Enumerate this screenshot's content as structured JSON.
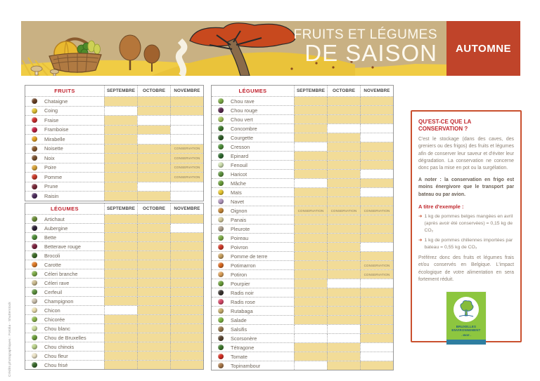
{
  "banner": {
    "title_line1": "FRUITS ET LÉGUMES",
    "title_line2": "DE SAISON",
    "season": "AUTOMNE"
  },
  "months": [
    "SEPTEMBRE",
    "OCTOBRE",
    "NOVEMBRE"
  ],
  "conservation_label": "CONSERVATION",
  "colors": {
    "accent_red": "#c0442a",
    "heading_red": "#c0272d",
    "cell_fill": "#f2dc98",
    "banner_bg": "#c9b183",
    "logo_green": "#8dc63f",
    "logo_blue": "#2e7ea0",
    "label_text": "#6e6458"
  },
  "tables": [
    {
      "section": "FRUITS",
      "rows": [
        {
          "label": "Chataigne",
          "icon": "chataigne-icon",
          "color": "#6b4226",
          "cells": [
            "f",
            "f",
            "f"
          ]
        },
        {
          "label": "Coing",
          "icon": "coing-icon",
          "color": "#e3c436",
          "cells": [
            "e",
            "f",
            "f"
          ]
        },
        {
          "label": "Fraise",
          "icon": "fraise-icon",
          "color": "#d12f2f",
          "cells": [
            "f",
            "e",
            "e"
          ]
        },
        {
          "label": "Framboise",
          "icon": "framboise-icon",
          "color": "#c42143",
          "cells": [
            "f",
            "f",
            "e"
          ]
        },
        {
          "label": "Mirabelle",
          "icon": "mirabelle-icon",
          "color": "#e8a625",
          "cells": [
            "f",
            "e",
            "e"
          ]
        },
        {
          "label": "Noisette",
          "icon": "noisette-icon",
          "color": "#8a5a2e",
          "cells": [
            "f",
            "f",
            "c"
          ]
        },
        {
          "label": "Noix",
          "icon": "noix-icon",
          "color": "#7a5230",
          "cells": [
            "f",
            "f",
            "c"
          ]
        },
        {
          "label": "Poire",
          "icon": "poire-icon",
          "color": "#d9a43a",
          "cells": [
            "f",
            "f",
            "c"
          ]
        },
        {
          "label": "Pomme",
          "icon": "pomme-icon",
          "color": "#cc3b2a",
          "cells": [
            "f",
            "f",
            "c"
          ]
        },
        {
          "label": "Prune",
          "icon": "prune-icon",
          "color": "#7a2a3a",
          "cells": [
            "f",
            "e",
            "e"
          ]
        },
        {
          "label": "Raisin",
          "icon": "raisin-icon",
          "color": "#4e2d5e",
          "cells": [
            "f",
            "f",
            "e"
          ]
        }
      ]
    },
    {
      "section": "LÉGUMES",
      "rows": [
        {
          "label": "Artichaut",
          "icon": "artichaut-icon",
          "color": "#6d8f3a",
          "cells": [
            "f",
            "f",
            "f"
          ]
        },
        {
          "label": "Aubergine",
          "icon": "aubergine-icon",
          "color": "#2e2238",
          "cells": [
            "f",
            "f",
            "e"
          ]
        },
        {
          "label": "Bette",
          "icon": "bette-icon",
          "color": "#4f8f3a",
          "cells": [
            "f",
            "f",
            "f"
          ]
        },
        {
          "label": "Betterave rouge",
          "icon": "betterave-rouge-icon",
          "color": "#7e2440",
          "cells": [
            "f",
            "f",
            "f"
          ]
        },
        {
          "label": "Brocoli",
          "icon": "brocoli-icon",
          "color": "#3e6e2a",
          "cells": [
            "f",
            "f",
            "f"
          ]
        },
        {
          "label": "Carotte",
          "icon": "carotte-icon",
          "color": "#e07b28",
          "cells": [
            "f",
            "f",
            "f"
          ]
        },
        {
          "label": "Céleri branche",
          "icon": "celeri-branche-icon",
          "color": "#7fae4a",
          "cells": [
            "f",
            "f",
            "f"
          ]
        },
        {
          "label": "Céleri rave",
          "icon": "celeri-rave-icon",
          "color": "#cdbd92",
          "cells": [
            "f",
            "f",
            "f"
          ]
        },
        {
          "label": "Cerfeuil",
          "icon": "cerfeuil-icon",
          "color": "#5f9440",
          "cells": [
            "f",
            "f",
            "f"
          ]
        },
        {
          "label": "Champignon",
          "icon": "champignon-icon",
          "color": "#cfc4b0",
          "cells": [
            "f",
            "f",
            "f"
          ]
        },
        {
          "label": "Chicon",
          "icon": "chicon-icon",
          "color": "#ece0b0",
          "cells": [
            "e",
            "f",
            "f"
          ]
        },
        {
          "label": "Chicorée",
          "icon": "chicoree-icon",
          "color": "#8fba50",
          "cells": [
            "f",
            "f",
            "f"
          ]
        },
        {
          "label": "Chou blanc",
          "icon": "chou-blanc-icon",
          "color": "#cfe0a0",
          "cells": [
            "f",
            "f",
            "f"
          ]
        },
        {
          "label": "Chou de Bruxelles",
          "icon": "chou-de-bruxelles-icon",
          "color": "#6da03c",
          "cells": [
            "f",
            "f",
            "f"
          ]
        },
        {
          "label": "Chou chinois",
          "icon": "chou-chinois-icon",
          "color": "#bcd48c",
          "cells": [
            "f",
            "f",
            "f"
          ]
        },
        {
          "label": "Chou fleur",
          "icon": "chou-fleur-icon",
          "color": "#ece4c8",
          "cells": [
            "f",
            "f",
            "f"
          ]
        },
        {
          "label": "Chou frisé",
          "icon": "chou-frise-icon",
          "color": "#3a6b2e",
          "cells": [
            "f",
            "f",
            "f"
          ]
        }
      ]
    },
    {
      "section": "LÉGUMES",
      "rows": [
        {
          "label": "Chou rave",
          "icon": "chou-rave-icon",
          "color": "#7fae4a",
          "cells": [
            "f",
            "f",
            "f"
          ]
        },
        {
          "label": "Chou rouge",
          "icon": "chou-rouge-icon",
          "color": "#5c2a52",
          "cells": [
            "f",
            "f",
            "f"
          ]
        },
        {
          "label": "Chou vert",
          "icon": "chou-vert-icon",
          "color": "#a8c860",
          "cells": [
            "f",
            "f",
            "f"
          ]
        },
        {
          "label": "Concombre",
          "icon": "concombre-icon",
          "color": "#3f7a2e",
          "cells": [
            "f",
            "e",
            "e"
          ]
        },
        {
          "label": "Courgette",
          "icon": "courgette-icon",
          "color": "#2f5e28",
          "cells": [
            "f",
            "f",
            "e"
          ]
        },
        {
          "label": "Cresson",
          "icon": "cresson-icon",
          "color": "#4f8f3a",
          "cells": [
            "e",
            "f",
            "f"
          ]
        },
        {
          "label": "Epinard",
          "icon": "epinard-icon",
          "color": "#2f6b2f",
          "cells": [
            "f",
            "f",
            "f"
          ]
        },
        {
          "label": "Fenouil",
          "icon": "fenouil-icon",
          "color": "#cfe0b0",
          "cells": [
            "f",
            "f",
            "f"
          ]
        },
        {
          "label": "Haricot",
          "icon": "haricot-icon",
          "color": "#5f9440",
          "cells": [
            "f",
            "f",
            "e"
          ]
        },
        {
          "label": "Mâche",
          "icon": "mache-icon",
          "color": "#6da03c",
          "cells": [
            "e",
            "f",
            "f"
          ]
        },
        {
          "label": "Maïs",
          "icon": "mais-icon",
          "color": "#e8c832",
          "cells": [
            "f",
            "f",
            "e"
          ]
        },
        {
          "label": "Navet",
          "icon": "navet-icon",
          "color": "#b49ac0",
          "cells": [
            "f",
            "f",
            "f"
          ]
        },
        {
          "label": "Oignon",
          "icon": "oignon-icon",
          "color": "#c88a3a",
          "cells": [
            "c",
            "c",
            "c"
          ]
        },
        {
          "label": "Panais",
          "icon": "panais-icon",
          "color": "#d8cfa0",
          "cells": [
            "f",
            "f",
            "f"
          ]
        },
        {
          "label": "Pleurote",
          "icon": "pleurote-icon",
          "color": "#b0a290",
          "cells": [
            "f",
            "f",
            "f"
          ]
        },
        {
          "label": "Poireau",
          "icon": "poireau-icon",
          "color": "#7fae4a",
          "cells": [
            "f",
            "f",
            "f"
          ]
        },
        {
          "label": "Poivron",
          "icon": "poivron-icon",
          "color": "#d13b2a",
          "cells": [
            "f",
            "f",
            "e"
          ]
        },
        {
          "label": "Pomme de terre",
          "icon": "pomme-de-terre-icon",
          "color": "#c8a060",
          "cells": [
            "f",
            "f",
            "f"
          ]
        },
        {
          "label": "Potimarron",
          "icon": "potimarron-icon",
          "color": "#d96a22",
          "cells": [
            "f",
            "f",
            "c"
          ]
        },
        {
          "label": "Potiron",
          "icon": "potiron-icon",
          "color": "#dba05a",
          "cells": [
            "f",
            "f",
            "c"
          ]
        },
        {
          "label": "Pourpier",
          "icon": "pourpier-icon",
          "color": "#6da03c",
          "cells": [
            "f",
            "e",
            "e"
          ]
        },
        {
          "label": "Radis noir",
          "icon": "radis-noir-icon",
          "color": "#3a3430",
          "cells": [
            "f",
            "f",
            "f"
          ]
        },
        {
          "label": "Radis rose",
          "icon": "radis-rose-icon",
          "color": "#d84a6a",
          "cells": [
            "f",
            "f",
            "f"
          ]
        },
        {
          "label": "Rutabaga",
          "icon": "rutabaga-icon",
          "color": "#c9b070",
          "cells": [
            "f",
            "f",
            "f"
          ]
        },
        {
          "label": "Salade",
          "icon": "salade-icon",
          "color": "#7fb845",
          "cells": [
            "f",
            "f",
            "f"
          ]
        },
        {
          "label": "Salsifis",
          "icon": "salsifis-icon",
          "color": "#9a7a4e",
          "cells": [
            "e",
            "e",
            "f"
          ]
        },
        {
          "label": "Scorsonère",
          "icon": "scorsonere-icon",
          "color": "#5a4632",
          "cells": [
            "e",
            "e",
            "f"
          ]
        },
        {
          "label": "Tétragone",
          "icon": "tetragone-icon",
          "color": "#3f7a2e",
          "cells": [
            "f",
            "f",
            "e"
          ]
        },
        {
          "label": "Tomate",
          "icon": "tomate-icon",
          "color": "#d52f23",
          "cells": [
            "f",
            "f",
            "e"
          ]
        },
        {
          "label": "Topinambour",
          "icon": "topinambour-icon",
          "color": "#a8784a",
          "cells": [
            "e",
            "f",
            "f"
          ]
        }
      ]
    }
  ],
  "info_panel": {
    "title": "QU'EST-CE QUE LA CONSERVATION ?",
    "intro": "C'est le stockage (dans des caves, des greniers ou des frigos) des fruits et légumes afin de conserver leur saveur et d'éviter leur dégradation. La conservation ne concerne donc pas la mise en pot ou la surgélation.",
    "note": "A noter : la conservation en frigo est moins énergivore que le transport par bateau ou par avion.",
    "example_heading": "A titre d'exemple :",
    "bullets": [
      "1 kg de pommes belges mangées en avril (après avoir été conservées) = 0,15 kg de CO₂",
      "1 kg de pommes chiliennes importées par bateau = 0,55 kg de CO₂"
    ],
    "outro": "Préférez donc des fruits et légumes frais et/ou conservés en Belgique. L'impact écologique de votre alimentation en sera fortement réduit.",
    "logo": {
      "line1": "BRUXELLES",
      "line2": "ENVIRONNEMENT",
      "line3": "- IBGE -"
    }
  },
  "credits": "Crédits photographiques : Fotolia - Shutterstock"
}
